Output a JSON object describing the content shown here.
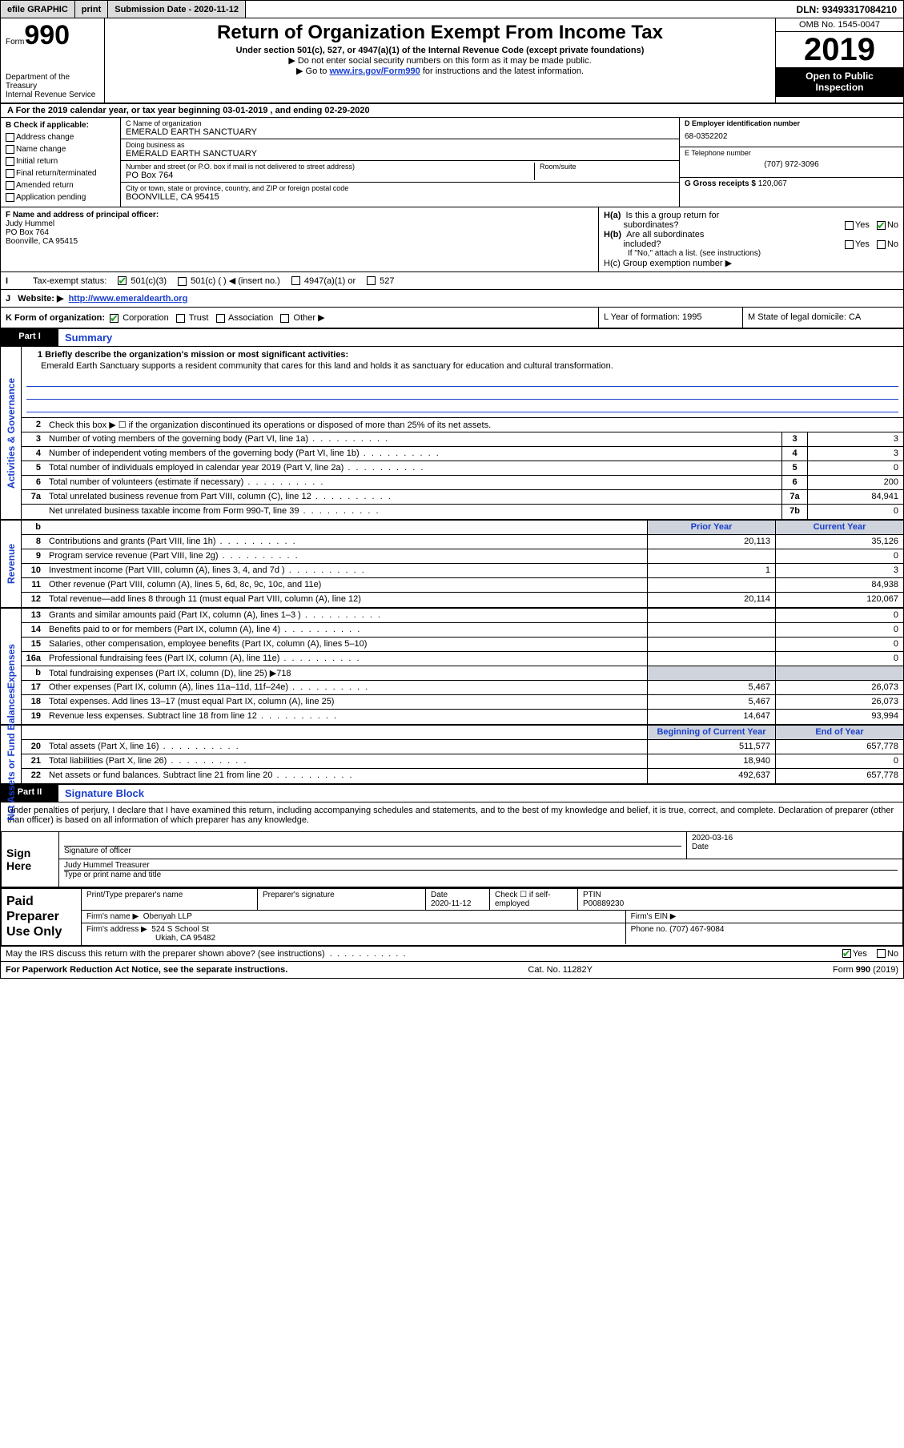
{
  "topbar": {
    "efile": "efile GRAPHIC",
    "print": "print",
    "sub_label": "Submission Date -",
    "sub_date": "2020-11-12",
    "dln_label": "DLN:",
    "dln": "93493317084210"
  },
  "header": {
    "form_word": "Form",
    "form_num": "990",
    "dept1": "Department of the Treasury",
    "dept2": "Internal Revenue Service",
    "title": "Return of Organization Exempt From Income Tax",
    "sub": "Under section 501(c), 527, or 4947(a)(1) of the Internal Revenue Code (except private foundations)",
    "note1": "Do not enter social security numbers on this form as it may be made public.",
    "note2_pre": "Go to ",
    "note2_link": "www.irs.gov/Form990",
    "note2_post": " for instructions and the latest information.",
    "omb": "OMB No. 1545-0047",
    "year": "2019",
    "pub1": "Open to Public",
    "pub2": "Inspection"
  },
  "row_a": "A For the 2019 calendar year, or tax year beginning 03-01-2019   , and ending 02-29-2020",
  "col_b": {
    "hdr": "B Check if applicable:",
    "opts": [
      "Address change",
      "Name change",
      "Initial return",
      "Final return/terminated",
      "Amended return",
      "Application pending"
    ]
  },
  "col_c": {
    "name_lbl": "C Name of organization",
    "name": "EMERALD EARTH SANCTUARY",
    "dba_lbl": "Doing business as",
    "dba": "EMERALD EARTH SANCTUARY",
    "addr_lbl": "Number and street (or P.O. box if mail is not delivered to street address)",
    "room_lbl": "Room/suite",
    "addr": "PO Box 764",
    "city_lbl": "City or town, state or province, country, and ZIP or foreign postal code",
    "city": "BOONVILLE, CA  95415"
  },
  "col_d": {
    "ein_lbl": "D Employer identification number",
    "ein": "68-0352202",
    "tel_lbl": "E Telephone number",
    "tel": "(707) 972-3096",
    "gross_lbl": "G Gross receipts $",
    "gross": "120,067"
  },
  "row_f": {
    "lbl": "F  Name and address of principal officer:",
    "name": "Judy Hummel",
    "addr1": "PO Box 764",
    "addr2": "Boonville, CA  95415"
  },
  "row_h": {
    "ha": "H(a)  Is this a group return for subordinates?",
    "hb": "H(b)  Are all subordinates included?",
    "hb_note": "If \"No,\" attach a list. (see instructions)",
    "hc": "H(c)  Group exemption number ▶"
  },
  "row_i": {
    "lbl": "Tax-exempt status:",
    "o1": "501(c)(3)",
    "o2": "501(c) (  ) ◀ (insert no.)",
    "o3": "4947(a)(1) or",
    "o4": "527"
  },
  "row_j": {
    "lbl": "Website: ▶",
    "url": "http://www.emeraldearth.org"
  },
  "row_k": {
    "k_lbl": "K Form of organization:",
    "k_opts": [
      "Corporation",
      "Trust",
      "Association",
      "Other ▶"
    ],
    "l": "L Year of formation: 1995",
    "m": "M State of legal domicile: CA"
  },
  "part1": {
    "tag": "Part I",
    "title": "Summary"
  },
  "mission": {
    "num": "1",
    "lbl": "Briefly describe the organization's mission or most significant activities:",
    "txt": "Emerald Earth Sanctuary supports a resident community that cares for this land and holds it as sanctuary for education and cultural transformation."
  },
  "sections": {
    "gov": {
      "label": "Activities & Governance",
      "rows": [
        {
          "n": "2",
          "t": "Check this box ▶ ☐  if the organization discontinued its operations or disposed of more than 25% of its net assets."
        },
        {
          "n": "3",
          "t": "Number of voting members of the governing body (Part VI, line 1a)",
          "dots": true,
          "box": "3",
          "v": "3"
        },
        {
          "n": "4",
          "t": "Number of independent voting members of the governing body (Part VI, line 1b)",
          "dots": true,
          "box": "4",
          "v": "3"
        },
        {
          "n": "5",
          "t": "Total number of individuals employed in calendar year 2019 (Part V, line 2a)",
          "dots": true,
          "box": "5",
          "v": "0"
        },
        {
          "n": "6",
          "t": "Total number of volunteers (estimate if necessary)",
          "dots": true,
          "box": "6",
          "v": "200"
        },
        {
          "n": "7a",
          "t": "Total unrelated business revenue from Part VIII, column (C), line 12",
          "dots": true,
          "box": "7a",
          "v": "84,941"
        },
        {
          "n": "",
          "t": "Net unrelated business taxable income from Form 990-T, line 39",
          "dots": true,
          "box": "7b",
          "v": "0"
        }
      ]
    },
    "rev": {
      "label": "Revenue",
      "hdr_prior": "Prior Year",
      "hdr_curr": "Current Year",
      "rows": [
        {
          "n": "8",
          "t": "Contributions and grants (Part VIII, line 1h)",
          "dots": true,
          "p": "20,113",
          "c": "35,126"
        },
        {
          "n": "9",
          "t": "Program service revenue (Part VIII, line 2g)",
          "dots": true,
          "p": "",
          "c": "0"
        },
        {
          "n": "10",
          "t": "Investment income (Part VIII, column (A), lines 3, 4, and 7d )",
          "dots": true,
          "p": "1",
          "c": "3"
        },
        {
          "n": "11",
          "t": "Other revenue (Part VIII, column (A), lines 5, 6d, 8c, 9c, 10c, and 11e)",
          "p": "",
          "c": "84,938"
        },
        {
          "n": "12",
          "t": "Total revenue—add lines 8 through 11 (must equal Part VIII, column (A), line 12)",
          "p": "20,114",
          "c": "120,067"
        }
      ]
    },
    "exp": {
      "label": "Expenses",
      "rows": [
        {
          "n": "13",
          "t": "Grants and similar amounts paid (Part IX, column (A), lines 1–3 )",
          "dots": true,
          "p": "",
          "c": "0"
        },
        {
          "n": "14",
          "t": "Benefits paid to or for members (Part IX, column (A), line 4)",
          "dots": true,
          "p": "",
          "c": "0"
        },
        {
          "n": "15",
          "t": "Salaries, other compensation, employee benefits (Part IX, column (A), lines 5–10)",
          "p": "",
          "c": "0"
        },
        {
          "n": "16a",
          "t": "Professional fundraising fees (Part IX, column (A), line 11e)",
          "dots": true,
          "p": "",
          "c": "0"
        },
        {
          "n": "b",
          "t": "Total fundraising expenses (Part IX, column (D), line 25) ▶718",
          "shade": true
        },
        {
          "n": "17",
          "t": "Other expenses (Part IX, column (A), lines 11a–11d, 11f–24e)",
          "dots": true,
          "p": "5,467",
          "c": "26,073"
        },
        {
          "n": "18",
          "t": "Total expenses. Add lines 13–17 (must equal Part IX, column (A), line 25)",
          "p": "5,467",
          "c": "26,073"
        },
        {
          "n": "19",
          "t": "Revenue less expenses. Subtract line 18 from line 12",
          "dots": true,
          "p": "14,647",
          "c": "93,994"
        }
      ]
    },
    "net": {
      "label": "Net Assets or Fund Balances",
      "hdr_prior": "Beginning of Current Year",
      "hdr_curr": "End of Year",
      "rows": [
        {
          "n": "20",
          "t": "Total assets (Part X, line 16)",
          "dots": true,
          "p": "511,577",
          "c": "657,778"
        },
        {
          "n": "21",
          "t": "Total liabilities (Part X, line 26)",
          "dots": true,
          "p": "18,940",
          "c": "0"
        },
        {
          "n": "22",
          "t": "Net assets or fund balances. Subtract line 21 from line 20",
          "dots": true,
          "p": "492,637",
          "c": "657,778"
        }
      ]
    }
  },
  "part2": {
    "tag": "Part II",
    "title": "Signature Block"
  },
  "penalty": "Under penalties of perjury, I declare that I have examined this return, including accompanying schedules and statements, and to the best of my knowledge and belief, it is true, correct, and complete. Declaration of preparer (other than officer) is based on all information of which preparer has any knowledge.",
  "sign": {
    "here": "Sign Here",
    "sig_officer": "Signature of officer",
    "date_lbl": "Date",
    "date": "2020-03-16",
    "name": "Judy Hummel  Treasurer",
    "name_lbl": "Type or print name and title"
  },
  "paid": {
    "lbl": "Paid Preparer Use Only",
    "c1": "Print/Type preparer's name",
    "c2": "Preparer's signature",
    "c3": "Date",
    "c3v": "2020-11-12",
    "c4": "Check ☐ if self-employed",
    "c5": "PTIN",
    "c5v": "P00889230",
    "firm_lbl": "Firm's name    ▶",
    "firm": "Obenyah LLP",
    "ein_lbl": "Firm's EIN ▶",
    "addr_lbl": "Firm's address ▶",
    "addr1": "524 S School St",
    "addr2": "Ukiah, CA  95482",
    "ph_lbl": "Phone no.",
    "ph": "(707) 467-9084"
  },
  "discuss": "May the IRS discuss this return with the preparer shown above? (see instructions)",
  "footer": {
    "l": "For Paperwork Reduction Act Notice, see the separate instructions.",
    "m": "Cat. No. 11282Y",
    "r": "Form 990 (2019)"
  },
  "colors": {
    "link": "#1a3fcc",
    "shade": "#cfd4dc",
    "check": "#1aa01a"
  }
}
